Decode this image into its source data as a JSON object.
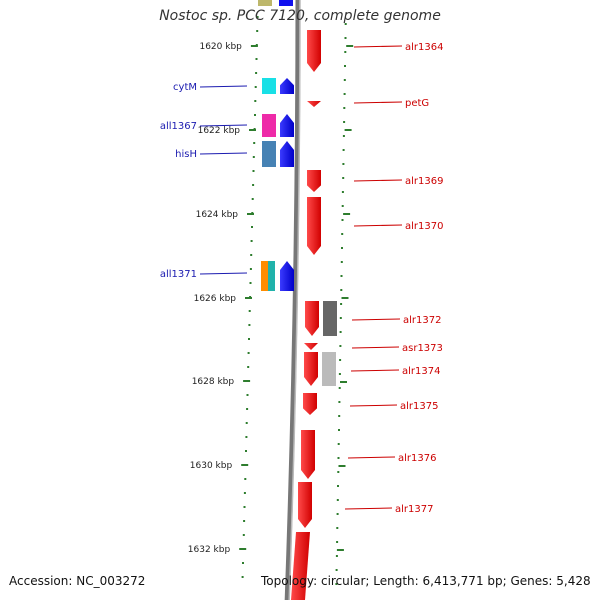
{
  "title": "Nostoc sp. PCC 7120, complete genome",
  "footer": {
    "accession": "Accession: NC_003272",
    "summary": "Topology: circular; Length: 6,413,771 bp; Genes: 5,428"
  },
  "colors": {
    "minus_label": "#1b1bb0",
    "plus_label": "#cc0000",
    "plus_gene": "#ee1111",
    "minus_gene": "#1010ee",
    "tick": "#2e7d2e",
    "backbone": "#888888"
  },
  "scale_labels": [
    "1620 kbp",
    "1622 kbp",
    "1624 kbp",
    "1626 kbp",
    "1628 kbp",
    "1630 kbp",
    "1632 kbp"
  ],
  "genes_minus": [
    {
      "name": "cytM",
      "cog_color": "#18e0e6"
    },
    {
      "name": "all1367",
      "cog_color": "#ee2aa8"
    },
    {
      "name": "hisH",
      "cog_color": "#4682b4"
    },
    {
      "name": "all1371",
      "cog_color": "#ff8c00",
      "cog_color2": "#20b2aa"
    }
  ],
  "genes_plus": [
    {
      "name": "alr1364"
    },
    {
      "name": "petG"
    },
    {
      "name": "alr1369"
    },
    {
      "name": "alr1370"
    },
    {
      "name": "alr1372",
      "cog_color": "#666666"
    },
    {
      "name": "asr1373"
    },
    {
      "name": "alr1374",
      "cog_color": "#bbbbbb"
    },
    {
      "name": "alr1375"
    },
    {
      "name": "alr1376"
    },
    {
      "name": "alr1377"
    }
  ]
}
